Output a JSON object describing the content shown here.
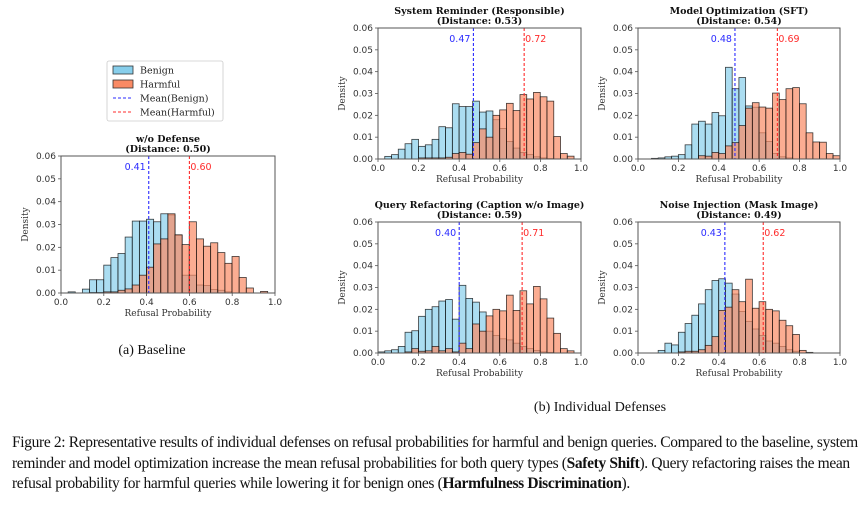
{
  "legend": {
    "items": [
      {
        "label": "Benign",
        "kind": "patch",
        "color": "#87ceeb"
      },
      {
        "label": "Harmful",
        "kind": "patch",
        "color": "#fa8a64"
      },
      {
        "label": "Mean(Benign)",
        "kind": "dashed",
        "color": "#2b2bff"
      },
      {
        "label": "Mean(Harmful)",
        "kind": "dashed",
        "color": "#ff2b2b"
      }
    ]
  },
  "colors": {
    "benign": "#87ceeb",
    "harmful": "#fa8a64",
    "benign_mean": "#2b2bff",
    "harmful_mean": "#ff2b2b",
    "bar_edge": "#000000"
  },
  "subcaptions": {
    "a": "(a) Baseline",
    "b": "(b) Individual Defenses"
  },
  "caption": {
    "prefix": "Figure 2: Representative results of individual defenses on refusal probabilities for harmful and benign queries. Compared to the baseline, system reminder and model optimization increase the mean refusal probabilities for both query types (",
    "bold1": "Safety Shift",
    "middle": "). Query refactoring raises the mean refusal probability for harmful queries while lowering it for benign ones (",
    "bold2": "Harmfulness Discrimination",
    "suffix": ")."
  },
  "chart_data": [
    {
      "id": "baseline",
      "type": "bar",
      "title": "w/o Defense",
      "subtitle": "(Distance: 0.50)",
      "xlabel": "Refusal Probability",
      "ylabel": "Density",
      "xlim": [
        0.0,
        1.0
      ],
      "ylim": [
        0.0,
        0.06
      ],
      "xticks": [
        "0.0",
        "0.2",
        "0.4",
        "0.6",
        "0.8",
        "1.0"
      ],
      "yticks": [
        "0.00",
        "0.01",
        "0.02",
        "0.03",
        "0.04",
        "0.05",
        "0.06"
      ],
      "bin_width": 0.0333,
      "series": [
        {
          "name": "Benign",
          "values": [
            0.0,
            0.0005,
            0.0,
            0.0017,
            0.0058,
            0.0058,
            0.0122,
            0.0155,
            0.0173,
            0.0245,
            0.0315,
            0.0315,
            0.0323,
            0.0312,
            0.0347,
            0.0342,
            0.0253,
            0.0078,
            0.0078,
            0.0035,
            0.0033,
            0.0015,
            0.0012,
            0.0005,
            0.0,
            0.0,
            0.0,
            0.0,
            0.0,
            0.0
          ]
        },
        {
          "name": "Harmful",
          "values": [
            0.0,
            0.0,
            0.0,
            0.0,
            0.0002,
            0.0002,
            0.0005,
            0.0005,
            0.0012,
            0.0018,
            0.0035,
            0.0078,
            0.0113,
            0.0215,
            0.0237,
            0.0347,
            0.0255,
            0.0212,
            0.0312,
            0.0237,
            0.0205,
            0.022,
            0.0177,
            0.013,
            0.016,
            0.0068,
            0.0022,
            0.0,
            0.0007,
            0.0
          ]
        }
      ],
      "means": {
        "Mean(Benign)": 0.41,
        "Mean(Harmful)": 0.6
      },
      "mean_labels": {
        "benign": "0.41",
        "harmful": "0.60"
      },
      "grid": false,
      "legend": "above"
    },
    {
      "id": "system-reminder",
      "type": "bar",
      "title": "System Reminder (Responsible)",
      "subtitle": "(Distance: 0.53)",
      "xlabel": "Refusal Probability",
      "ylabel": "Density",
      "xlim": [
        0.0,
        1.0
      ],
      "ylim": [
        0.0,
        0.06
      ],
      "xticks": [
        "0.0",
        "0.2",
        "0.4",
        "0.6",
        "0.8",
        "1.0"
      ],
      "yticks": [
        "0.00",
        "0.01",
        "0.02",
        "0.03",
        "0.04",
        "0.05",
        "0.06"
      ],
      "bin_width": 0.0333,
      "series": [
        {
          "name": "Benign",
          "values": [
            0.0,
            0.0012,
            0.002,
            0.0045,
            0.007,
            0.009,
            0.0058,
            0.0065,
            0.009,
            0.0148,
            0.0143,
            0.0253,
            0.024,
            0.024,
            0.0265,
            0.0215,
            0.022,
            0.018,
            0.014,
            0.008,
            0.005,
            0.003,
            0.002,
            0.001,
            0.0005,
            0.0002,
            0.0,
            0.0,
            0.0,
            0.0
          ]
        },
        {
          "name": "Harmful",
          "values": [
            0.0,
            0.0,
            0.0,
            0.0,
            0.0,
            0.0,
            0.0005,
            0.0005,
            0.0005,
            0.0005,
            0.0008,
            0.0025,
            0.003,
            0.0022,
            0.0075,
            0.0138,
            0.01,
            0.02,
            0.0225,
            0.0255,
            0.0222,
            0.0295,
            0.0275,
            0.0305,
            0.0285,
            0.0265,
            0.0103,
            0.0025,
            0.0013,
            0.0
          ]
        }
      ],
      "means": {
        "Mean(Benign)": 0.47,
        "Mean(Harmful)": 0.72
      },
      "mean_labels": {
        "benign": "0.47",
        "harmful": "0.72"
      },
      "grid": false
    },
    {
      "id": "model-optimization",
      "type": "bar",
      "title": "Model Optimization (SFT)",
      "subtitle": "(Distance: 0.54)",
      "xlabel": "Refusal Probability",
      "ylabel": "Density",
      "xlim": [
        0.0,
        1.0
      ],
      "ylim": [
        0.0,
        0.06
      ],
      "xticks": [
        "0.0",
        "0.2",
        "0.4",
        "0.6",
        "0.8",
        "1.0"
      ],
      "yticks": [
        "0.00",
        "0.01",
        "0.02",
        "0.03",
        "0.04",
        "0.05",
        "0.06"
      ],
      "bin_width": 0.0333,
      "series": [
        {
          "name": "Benign",
          "values": [
            0.0,
            0.0,
            0.0003,
            0.0005,
            0.001,
            0.0013,
            0.002,
            0.0065,
            0.016,
            0.0173,
            0.016,
            0.0213,
            0.0198,
            0.042,
            0.0322,
            0.0373,
            0.0243,
            0.0237,
            0.012,
            0.008,
            0.0025,
            0.001,
            0.0005,
            0.0,
            0.0,
            0.0,
            0.0,
            0.0,
            0.0,
            0.0
          ]
        },
        {
          "name": "Harmful",
          "values": [
            0.0,
            0.0,
            0.0,
            0.0,
            0.0,
            0.0,
            0.0,
            0.0,
            0.0,
            0.0015,
            0.0013,
            0.003,
            0.0025,
            0.006,
            0.0075,
            0.0153,
            0.0233,
            0.0258,
            0.0238,
            0.0233,
            0.0302,
            0.0272,
            0.0322,
            0.0327,
            0.0253,
            0.012,
            0.0078,
            0.0077,
            0.0025,
            0.0015
          ]
        }
      ],
      "means": {
        "Mean(Benign)": 0.48,
        "Mean(Harmful)": 0.69
      },
      "mean_labels": {
        "benign": "0.48",
        "harmful": "0.69"
      },
      "grid": false
    },
    {
      "id": "query-refactoring",
      "type": "bar",
      "title": "Query Refactoring (Caption w/o Image)",
      "subtitle": "(Distance: 0.59)",
      "xlabel": "Refusal Probability",
      "ylabel": "Density",
      "xlim": [
        0.0,
        1.0
      ],
      "ylim": [
        0.0,
        0.06
      ],
      "xticks": [
        "0.0",
        "0.2",
        "0.4",
        "0.6",
        "0.8",
        "1.0"
      ],
      "yticks": [
        "0.00",
        "0.01",
        "0.02",
        "0.03",
        "0.04",
        "0.05",
        "0.06"
      ],
      "bin_width": 0.0333,
      "series": [
        {
          "name": "Benign",
          "values": [
            0.0005,
            0.001,
            0.0015,
            0.003,
            0.0095,
            0.0102,
            0.0168,
            0.02,
            0.0212,
            0.0238,
            0.0245,
            0.0155,
            0.031,
            0.025,
            0.0233,
            0.0188,
            0.01,
            0.008,
            0.0065,
            0.006,
            0.0045,
            0.003,
            0.002,
            0.0012,
            0.0005,
            0.0003,
            0.0,
            0.0,
            0.0,
            0.0
          ]
        },
        {
          "name": "Harmful",
          "values": [
            0.0,
            0.0,
            0.0,
            0.0,
            0.0005,
            0.002,
            0.0008,
            0.001,
            0.003,
            0.001,
            0.002,
            0.0005,
            0.0045,
            0.002,
            0.0133,
            0.01,
            0.017,
            0.02,
            0.0193,
            0.0265,
            0.0195,
            0.0285,
            0.0225,
            0.0305,
            0.0248,
            0.016,
            0.009,
            0.002,
            0.001,
            0.0
          ]
        }
      ],
      "means": {
        "Mean(Benign)": 0.4,
        "Mean(Harmful)": 0.71
      },
      "mean_labels": {
        "benign": "0.40",
        "harmful": "0.71"
      },
      "grid": false
    },
    {
      "id": "noise-injection",
      "type": "bar",
      "title": "Noise Injection (Mask Image)",
      "subtitle": "(Distance: 0.49)",
      "xlabel": "Refusal Probability",
      "ylabel": "Density",
      "xlim": [
        0.0,
        1.0
      ],
      "ylim": [
        0.0,
        0.06
      ],
      "xticks": [
        "0.0",
        "0.2",
        "0.4",
        "0.6",
        "0.8",
        "1.0"
      ],
      "yticks": [
        "0.00",
        "0.01",
        "0.02",
        "0.03",
        "0.04",
        "0.05",
        "0.06"
      ],
      "bin_width": 0.0333,
      "series": [
        {
          "name": "Benign",
          "values": [
            0.0,
            0.0,
            0.0,
            0.0012,
            0.0045,
            0.0037,
            0.0095,
            0.0135,
            0.0173,
            0.0225,
            0.029,
            0.0332,
            0.034,
            0.032,
            0.027,
            0.019,
            0.0145,
            0.011,
            0.008,
            0.0055,
            0.0045,
            0.003,
            0.0015,
            0.0008,
            0.0,
            0.0,
            0.0,
            0.0,
            0.0,
            0.0
          ]
        },
        {
          "name": "Harmful",
          "values": [
            0.0,
            0.0,
            0.0,
            0.0,
            0.0,
            0.0,
            0.0005,
            0.0008,
            0.0008,
            0.0015,
            0.0035,
            0.0075,
            0.0195,
            0.021,
            0.029,
            0.0235,
            0.0338,
            0.0205,
            0.0235,
            0.02,
            0.0193,
            0.015,
            0.0125,
            0.0085,
            0.0012,
            0.0003,
            0.0,
            0.0,
            0.0,
            0.0
          ]
        }
      ],
      "means": {
        "Mean(Benign)": 0.43,
        "Mean(Harmful)": 0.62
      },
      "mean_labels": {
        "benign": "0.43",
        "harmful": "0.62"
      },
      "grid": false
    }
  ]
}
